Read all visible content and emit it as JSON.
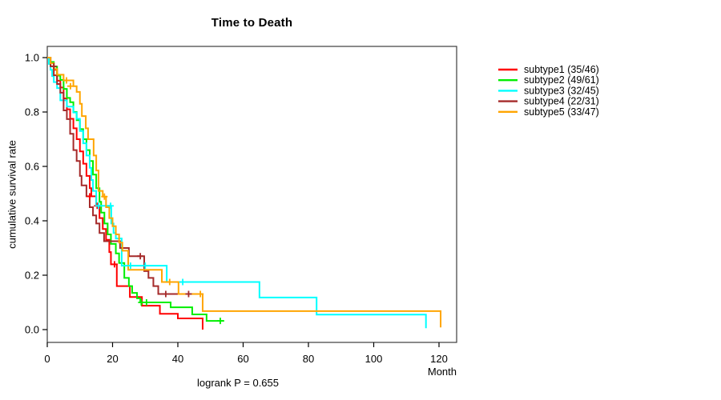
{
  "chart_data": {
    "type": "line",
    "chart_kind": "kaplan-meier-step",
    "title": "Time to Death",
    "xlabel": "Month",
    "ylabel": "cumulative survival rate",
    "annotation": "logrank P = 0.655",
    "xlim": [
      0,
      125
    ],
    "ylim": [
      0,
      1.0
    ],
    "x_ticks": [
      0,
      20,
      40,
      60,
      80,
      100,
      120
    ],
    "y_ticks": [
      "0.0",
      "0.2",
      "0.4",
      "0.6",
      "0.8",
      "1.0"
    ],
    "grid": false,
    "legend_position": "right-outside",
    "axis_color": "#3d3d3d",
    "series": [
      {
        "name": "subtype1 (35/46)",
        "color": "#FF0000",
        "end": 47.6,
        "steps": [
          [
            0,
            1.0
          ],
          [
            1,
            0.98
          ],
          [
            2,
            0.955
          ],
          [
            3,
            0.915
          ],
          [
            4,
            0.89
          ],
          [
            5,
            0.85
          ],
          [
            6,
            0.81
          ],
          [
            7,
            0.775
          ],
          [
            8,
            0.74
          ],
          [
            9,
            0.7
          ],
          [
            10,
            0.655
          ],
          [
            11,
            0.61
          ],
          [
            12,
            0.565
          ],
          [
            13,
            0.52
          ],
          [
            13.5,
            0.49
          ],
          [
            15,
            0.455
          ],
          [
            16,
            0.41
          ],
          [
            17,
            0.37
          ],
          [
            18,
            0.33
          ],
          [
            19,
            0.285
          ],
          [
            19.5,
            0.24
          ],
          [
            21.3,
            0.16
          ],
          [
            25.3,
            0.12
          ],
          [
            29,
            0.088
          ],
          [
            34.5,
            0.058
          ],
          [
            40,
            0.041
          ],
          [
            47.6,
            0.0
          ]
        ],
        "censors": [
          [
            13,
            0.49
          ],
          [
            15.3,
            0.455
          ],
          [
            20.6,
            0.24
          ]
        ]
      },
      {
        "name": "subtype2 (49/61)",
        "color": "#00EE00",
        "end": 54.2,
        "steps": [
          [
            0,
            1.0
          ],
          [
            1,
            0.984
          ],
          [
            2,
            0.967
          ],
          [
            3,
            0.934
          ],
          [
            4,
            0.918
          ],
          [
            5,
            0.885
          ],
          [
            6,
            0.852
          ],
          [
            7,
            0.836
          ],
          [
            8,
            0.8
          ],
          [
            9,
            0.77
          ],
          [
            10,
            0.737
          ],
          [
            11,
            0.7
          ],
          [
            12,
            0.66
          ],
          [
            13,
            0.62
          ],
          [
            14,
            0.57
          ],
          [
            15,
            0.52
          ],
          [
            16,
            0.47
          ],
          [
            16.5,
            0.43
          ],
          [
            17.5,
            0.39
          ],
          [
            18.5,
            0.35
          ],
          [
            19.5,
            0.315
          ],
          [
            21,
            0.28
          ],
          [
            22,
            0.245
          ],
          [
            23.6,
            0.19
          ],
          [
            25,
            0.16
          ],
          [
            26,
            0.135
          ],
          [
            27.5,
            0.115
          ],
          [
            28.5,
            0.1
          ],
          [
            37.8,
            0.082
          ],
          [
            44.4,
            0.056
          ],
          [
            48.8,
            0.032
          ]
        ],
        "censors": [
          [
            28.8,
            0.1
          ],
          [
            30.4,
            0.1
          ],
          [
            53,
            0.032
          ]
        ]
      },
      {
        "name": "subtype3 (32/45)",
        "color": "#00FFFF",
        "end": 116,
        "steps": [
          [
            0,
            1.0
          ],
          [
            0.5,
            0.977
          ],
          [
            1,
            0.955
          ],
          [
            1.5,
            0.932
          ],
          [
            2,
            0.91
          ],
          [
            3,
            0.888
          ],
          [
            4,
            0.843
          ],
          [
            6,
            0.82
          ],
          [
            8,
            0.798
          ],
          [
            9,
            0.775
          ],
          [
            10,
            0.73
          ],
          [
            11,
            0.685
          ],
          [
            12,
            0.64
          ],
          [
            13,
            0.595
          ],
          [
            13.5,
            0.55
          ],
          [
            14,
            0.51
          ],
          [
            15,
            0.455
          ],
          [
            19.6,
            0.39
          ],
          [
            20.3,
            0.355
          ],
          [
            21,
            0.335
          ],
          [
            22.8,
            0.235
          ],
          [
            36.6,
            0.175
          ],
          [
            65,
            0.118
          ],
          [
            82.5,
            0.055
          ],
          [
            116,
            0.005
          ]
        ],
        "censors": [
          [
            15.7,
            0.455
          ],
          [
            19.4,
            0.455
          ],
          [
            25.5,
            0.235
          ],
          [
            30,
            0.235
          ],
          [
            41.5,
            0.175
          ]
        ]
      },
      {
        "name": "subtype4 (22/31)",
        "color": "#A52A2A",
        "end": 43.7,
        "steps": [
          [
            0,
            1.0
          ],
          [
            1,
            0.968
          ],
          [
            2,
            0.935
          ],
          [
            3,
            0.903
          ],
          [
            4,
            0.871
          ],
          [
            5,
            0.806
          ],
          [
            6,
            0.774
          ],
          [
            7,
            0.72
          ],
          [
            8,
            0.66
          ],
          [
            9,
            0.62
          ],
          [
            10,
            0.565
          ],
          [
            10.5,
            0.53
          ],
          [
            12,
            0.49
          ],
          [
            13,
            0.45
          ],
          [
            14,
            0.42
          ],
          [
            15,
            0.39
          ],
          [
            16,
            0.355
          ],
          [
            17.4,
            0.325
          ],
          [
            22.3,
            0.3
          ],
          [
            25,
            0.27
          ],
          [
            29.7,
            0.215
          ],
          [
            31,
            0.19
          ],
          [
            32.5,
            0.16
          ],
          [
            34,
            0.131
          ]
        ],
        "censors": [
          [
            2,
            0.968
          ],
          [
            28.5,
            0.27
          ],
          [
            36.3,
            0.131
          ],
          [
            43.3,
            0.131
          ]
        ]
      },
      {
        "name": "subtype5 (33/47)",
        "color": "#FFA500",
        "end": 120.5,
        "steps": [
          [
            0,
            1.0
          ],
          [
            1,
            0.979
          ],
          [
            2,
            0.958
          ],
          [
            3,
            0.937
          ],
          [
            5,
            0.916
          ],
          [
            8,
            0.895
          ],
          [
            9,
            0.874
          ],
          [
            10,
            0.83
          ],
          [
            10.6,
            0.785
          ],
          [
            11.8,
            0.74
          ],
          [
            12.5,
            0.7
          ],
          [
            14.2,
            0.64
          ],
          [
            15,
            0.585
          ],
          [
            15.7,
            0.51
          ],
          [
            17,
            0.489
          ],
          [
            18,
            0.45
          ],
          [
            19,
            0.41
          ],
          [
            20,
            0.38
          ],
          [
            21,
            0.35
          ],
          [
            22,
            0.32
          ],
          [
            23,
            0.29
          ],
          [
            24.8,
            0.22
          ],
          [
            35.1,
            0.175
          ],
          [
            40.2,
            0.131
          ],
          [
            47.6,
            0.068
          ],
          [
            120.5,
            0.008
          ]
        ],
        "censors": [
          [
            5.9,
            0.916
          ],
          [
            7.1,
            0.895
          ],
          [
            17.5,
            0.489
          ],
          [
            37.5,
            0.175
          ],
          [
            46.9,
            0.131
          ]
        ]
      }
    ]
  }
}
